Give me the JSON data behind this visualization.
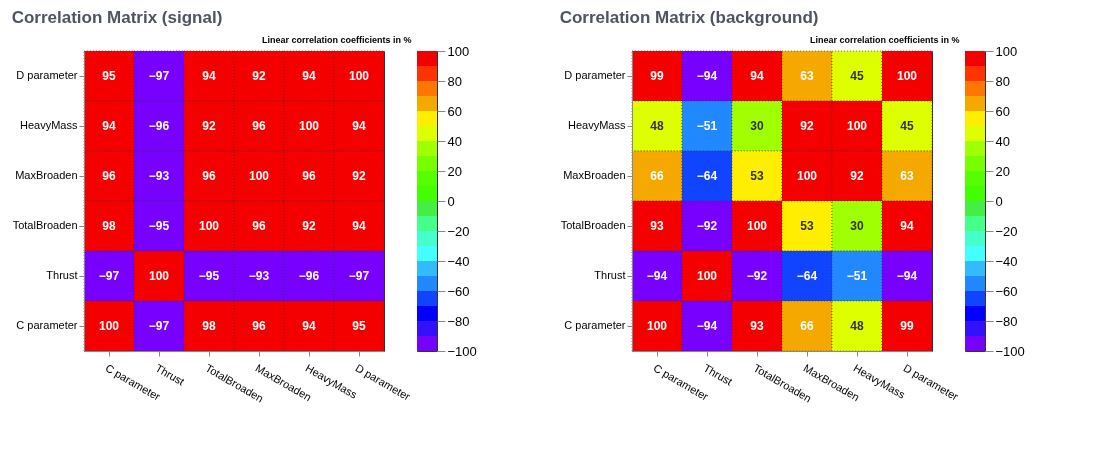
{
  "chart_data": [
    {
      "type": "heatmap",
      "title": "Correlation Matrix (signal)",
      "clabel": "Linear correlation coefficients in %",
      "data_labels": true,
      "categories": [
        "C parameter",
        "Thrust",
        "TotalBroaden",
        "MaxBroaden",
        "HeavyMass",
        "D parameter"
      ],
      "y_categories": [
        "D parameter",
        "HeavyMass",
        "MaxBroaden",
        "TotalBroaden",
        "Thrust",
        "C parameter"
      ],
      "cells": [
        [
          95,
          -97,
          94,
          92,
          94,
          100
        ],
        [
          94,
          -96,
          92,
          96,
          100,
          94
        ],
        [
          96,
          -93,
          96,
          100,
          96,
          92
        ],
        [
          98,
          -95,
          100,
          96,
          92,
          94
        ],
        [
          -97,
          100,
          -95,
          -93,
          -96,
          -97
        ],
        [
          100,
          -97,
          98,
          96,
          94,
          95
        ]
      ],
      "clim": [
        -100,
        100
      ],
      "cticks": [
        -100,
        -80,
        -60,
        -40,
        -20,
        0,
        20,
        40,
        60,
        80,
        100
      ]
    },
    {
      "type": "heatmap",
      "title": "Correlation Matrix (background)",
      "clabel": "Linear correlation coefficients in %",
      "data_labels": true,
      "categories": [
        "C parameter",
        "Thrust",
        "TotalBroaden",
        "MaxBroaden",
        "HeavyMass",
        "D parameter"
      ],
      "y_categories": [
        "D parameter",
        "HeavyMass",
        "MaxBroaden",
        "TotalBroaden",
        "Thrust",
        "C parameter"
      ],
      "cells": [
        [
          99,
          -94,
          94,
          63,
          45,
          100
        ],
        [
          48,
          -51,
          30,
          92,
          100,
          45
        ],
        [
          66,
          -64,
          53,
          100,
          92,
          63
        ],
        [
          93,
          -92,
          100,
          53,
          30,
          94
        ],
        [
          -94,
          100,
          -92,
          -64,
          -51,
          -94
        ],
        [
          100,
          -94,
          93,
          66,
          48,
          99
        ]
      ],
      "clim": [
        -100,
        100
      ],
      "cticks": [
        -100,
        -80,
        -60,
        -40,
        -20,
        0,
        20,
        40,
        60,
        80,
        100
      ]
    }
  ]
}
